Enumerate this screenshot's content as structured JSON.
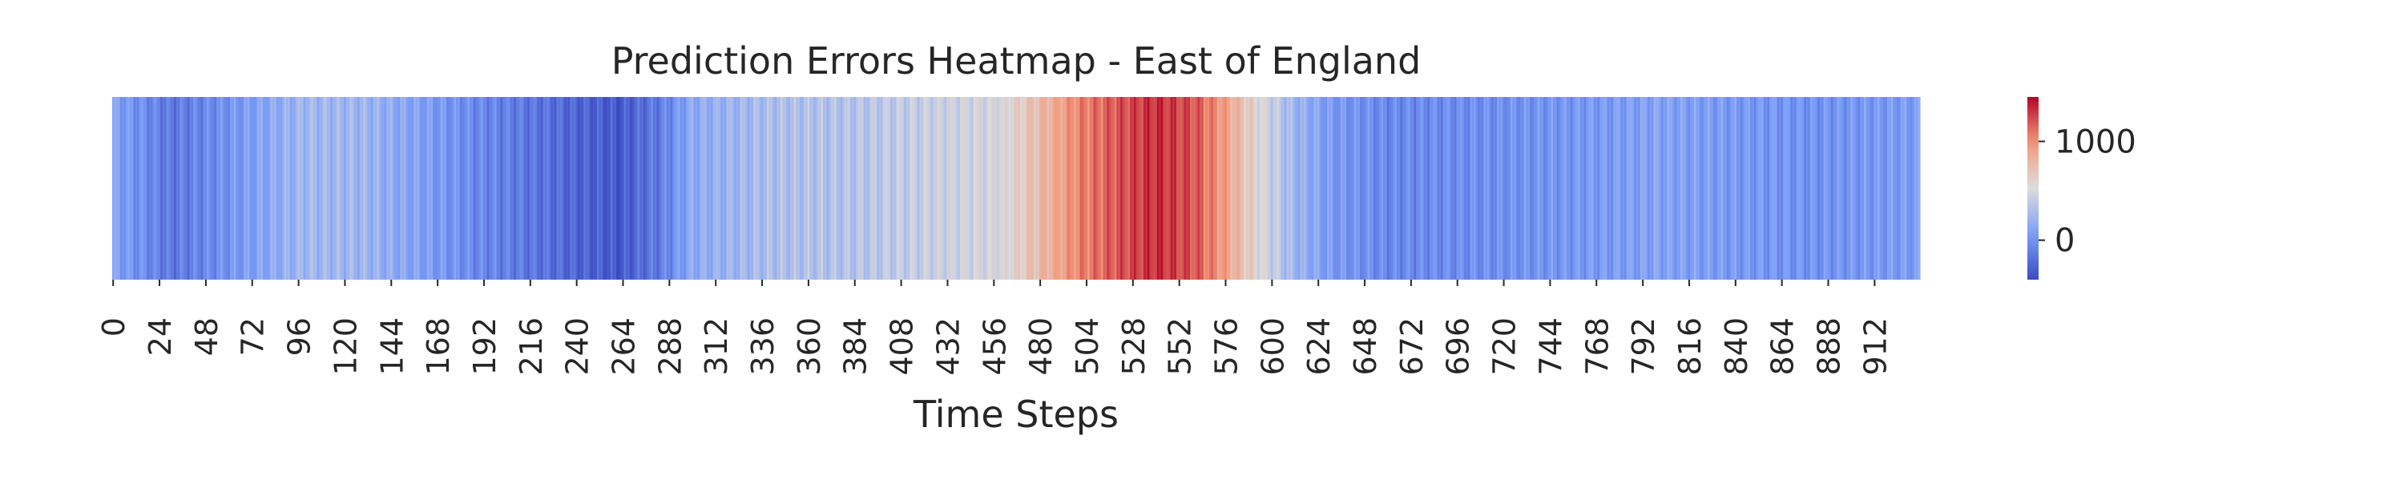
{
  "chart_data": {
    "type": "heatmap",
    "title": "Prediction Errors Heatmap - East of England",
    "xlabel": "Time Steps",
    "ylabel": "",
    "n_steps": 936,
    "x_tick_step": 24,
    "x_tick_labels": [
      "0",
      "24",
      "48",
      "72",
      "96",
      "120",
      "144",
      "168",
      "192",
      "216",
      "240",
      "264",
      "288",
      "312",
      "336",
      "360",
      "384",
      "408",
      "432",
      "456",
      "480",
      "504",
      "528",
      "552",
      "576",
      "600",
      "624",
      "648",
      "672",
      "696",
      "720",
      "744",
      "768",
      "792",
      "816",
      "840",
      "864",
      "888",
      "912"
    ],
    "colormap": "coolwarm",
    "colorbar": {
      "vmin": -400,
      "vmax": 1450,
      "tick_values": [
        0,
        1000
      ],
      "tick_labels": [
        "0",
        "1000"
      ]
    },
    "error_profile": [
      {
        "t": 0,
        "value": 100
      },
      {
        "t": 30,
        "value": -150
      },
      {
        "t": 50,
        "value": -50
      },
      {
        "t": 72,
        "value": 80
      },
      {
        "t": 100,
        "value": 250
      },
      {
        "t": 130,
        "value": 230
      },
      {
        "t": 160,
        "value": 80
      },
      {
        "t": 190,
        "value": -60
      },
      {
        "t": 215,
        "value": -150
      },
      {
        "t": 240,
        "value": -250
      },
      {
        "t": 262,
        "value": -320
      },
      {
        "t": 285,
        "value": -100
      },
      {
        "t": 300,
        "value": 150
      },
      {
        "t": 340,
        "value": 300
      },
      {
        "t": 380,
        "value": 330
      },
      {
        "t": 420,
        "value": 420
      },
      {
        "t": 460,
        "value": 500
      },
      {
        "t": 482,
        "value": 800
      },
      {
        "t": 500,
        "value": 1050
      },
      {
        "t": 520,
        "value": 1200
      },
      {
        "t": 540,
        "value": 1320
      },
      {
        "t": 560,
        "value": 1200
      },
      {
        "t": 575,
        "value": 950
      },
      {
        "t": 590,
        "value": 600
      },
      {
        "t": 610,
        "value": 250
      },
      {
        "t": 630,
        "value": 50
      },
      {
        "t": 660,
        "value": -60
      },
      {
        "t": 700,
        "value": -30
      },
      {
        "t": 760,
        "value": 30
      },
      {
        "t": 800,
        "value": 100
      },
      {
        "t": 840,
        "value": 40
      },
      {
        "t": 880,
        "value": 0
      },
      {
        "t": 935,
        "value": 60
      }
    ]
  }
}
